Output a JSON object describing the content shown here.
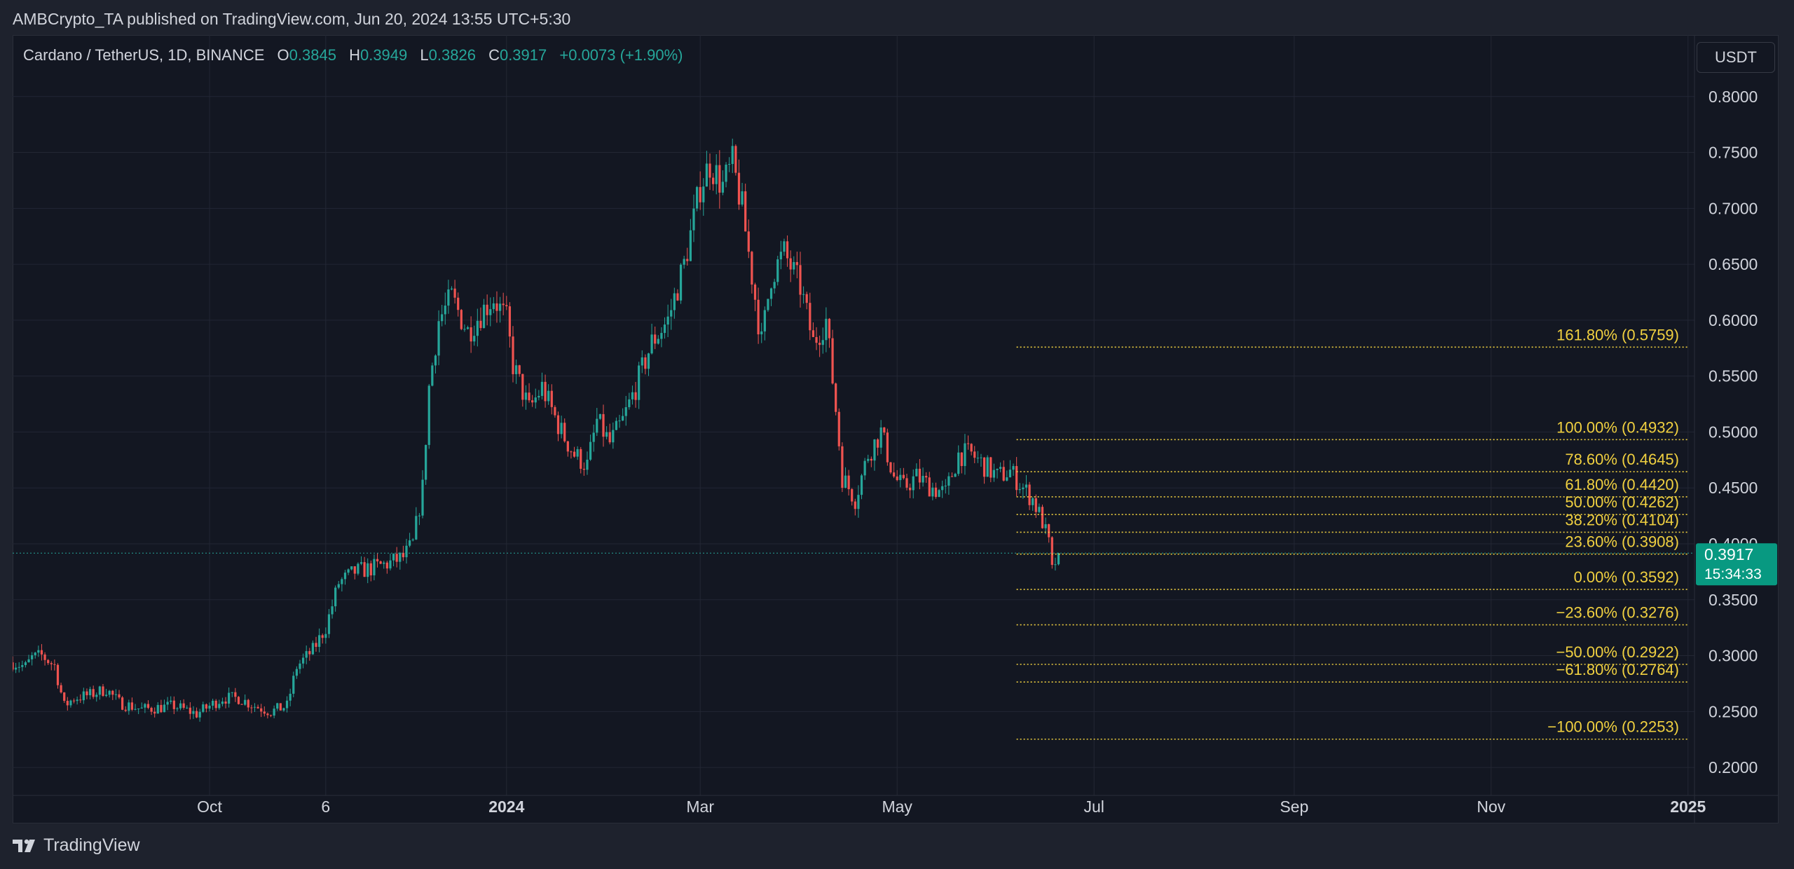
{
  "header": {
    "publisher": "AMBCrypto_TA published on TradingView.com, Jun 20, 2024 13:55 UTC+5:30"
  },
  "legend": {
    "symbol": "Cardano / TetherUS, 1D, BINANCE",
    "o_label": "O",
    "o": "0.3845",
    "h_label": "H",
    "h": "0.3949",
    "l_label": "L",
    "l": "0.3826",
    "c_label": "C",
    "c": "0.3917",
    "change": "+0.0073 (+1.90%)"
  },
  "currency": "USDT",
  "price_tag": {
    "price": "0.3917",
    "countdown": "15:34:33"
  },
  "brand": "TradingView",
  "colors": {
    "up": "#26a69a",
    "down": "#ef5350",
    "fib": "#f0d040",
    "grid": "#232734",
    "text": "#d1d4dc",
    "tag": "#089981"
  },
  "chart_data": {
    "type": "candlestick",
    "title": "Cardano / TetherUS, 1D, BINANCE",
    "ylim": [
      0.175,
      0.855
    ],
    "y_ticks": [
      "0.8000",
      "0.7500",
      "0.7000",
      "0.6500",
      "0.6000",
      "0.5500",
      "0.5000",
      "0.4500",
      "0.4000",
      "0.3500",
      "0.3000",
      "0.2500",
      "0.2000"
    ],
    "x_range": [
      "2023-08-01",
      "2025-01-03"
    ],
    "x_ticks": [
      {
        "date": "2023-10-01",
        "label": "Oct",
        "bold": false
      },
      {
        "date": "2023-11-06",
        "label": "6",
        "bold": false
      },
      {
        "date": "2024-01-01",
        "label": "2024",
        "bold": true
      },
      {
        "date": "2024-03-01",
        "label": "Mar",
        "bold": false
      },
      {
        "date": "2024-05-01",
        "label": "May",
        "bold": false
      },
      {
        "date": "2024-07-01",
        "label": "Jul",
        "bold": false
      },
      {
        "date": "2024-09-01",
        "label": "Sep",
        "bold": false
      },
      {
        "date": "2024-11-01",
        "label": "Nov",
        "bold": false
      },
      {
        "date": "2025-01-01",
        "label": "2025",
        "bold": true
      }
    ],
    "grid": true,
    "path_points": [
      [
        "2023-08-01",
        0.294
      ],
      [
        "2023-08-05",
        0.29
      ],
      [
        "2023-08-07",
        0.298
      ],
      [
        "2023-08-10",
        0.3
      ],
      [
        "2023-08-14",
        0.291
      ],
      [
        "2023-08-17",
        0.255
      ],
      [
        "2023-08-20",
        0.262
      ],
      [
        "2023-08-25",
        0.265
      ],
      [
        "2023-08-30",
        0.27
      ],
      [
        "2023-09-03",
        0.258
      ],
      [
        "2023-09-10",
        0.252
      ],
      [
        "2023-09-20",
        0.255
      ],
      [
        "2023-09-27",
        0.248
      ],
      [
        "2023-10-05",
        0.262
      ],
      [
        "2023-10-10",
        0.262
      ],
      [
        "2023-10-15",
        0.255
      ],
      [
        "2023-10-20",
        0.25
      ],
      [
        "2023-10-25",
        0.255
      ],
      [
        "2023-10-28",
        0.29
      ],
      [
        "2023-11-02",
        0.305
      ],
      [
        "2023-11-06",
        0.325
      ],
      [
        "2023-11-10",
        0.365
      ],
      [
        "2023-11-15",
        0.375
      ],
      [
        "2023-11-20",
        0.378
      ],
      [
        "2023-11-26",
        0.383
      ],
      [
        "2023-11-30",
        0.388
      ],
      [
        "2023-12-03",
        0.4
      ],
      [
        "2023-12-06",
        0.45
      ],
      [
        "2023-12-08",
        0.54
      ],
      [
        "2023-12-11",
        0.6
      ],
      [
        "2023-12-15",
        0.62
      ],
      [
        "2023-12-20",
        0.59
      ],
      [
        "2023-12-25",
        0.61
      ],
      [
        "2023-12-28",
        0.62
      ],
      [
        "2024-01-01",
        0.6
      ],
      [
        "2024-01-03",
        0.56
      ],
      [
        "2024-01-08",
        0.52
      ],
      [
        "2024-01-12",
        0.54
      ],
      [
        "2024-01-15",
        0.52
      ],
      [
        "2024-01-18",
        0.5
      ],
      [
        "2024-01-22",
        0.48
      ],
      [
        "2024-01-26",
        0.47
      ],
      [
        "2024-01-29",
        0.51
      ],
      [
        "2024-02-02",
        0.49
      ],
      [
        "2024-02-06",
        0.51
      ],
      [
        "2024-02-10",
        0.54
      ],
      [
        "2024-02-15",
        0.58
      ],
      [
        "2024-02-20",
        0.6
      ],
      [
        "2024-02-25",
        0.65
      ],
      [
        "2024-02-28",
        0.69
      ],
      [
        "2024-03-01",
        0.72
      ],
      [
        "2024-03-04",
        0.74
      ],
      [
        "2024-03-08",
        0.72
      ],
      [
        "2024-03-11",
        0.74
      ],
      [
        "2024-03-14",
        0.7
      ],
      [
        "2024-03-18",
        0.62
      ],
      [
        "2024-03-20",
        0.58
      ],
      [
        "2024-03-23",
        0.64
      ],
      [
        "2024-03-27",
        0.66
      ],
      [
        "2024-04-01",
        0.63
      ],
      [
        "2024-04-05",
        0.58
      ],
      [
        "2024-04-09",
        0.6
      ],
      [
        "2024-04-12",
        0.52
      ],
      [
        "2024-04-14",
        0.46
      ],
      [
        "2024-04-18",
        0.44
      ],
      [
        "2024-04-22",
        0.48
      ],
      [
        "2024-04-26",
        0.5
      ],
      [
        "2024-04-30",
        0.46
      ],
      [
        "2024-05-03",
        0.45
      ],
      [
        "2024-05-07",
        0.46
      ],
      [
        "2024-05-12",
        0.45
      ],
      [
        "2024-05-16",
        0.445
      ],
      [
        "2024-05-20",
        0.48
      ],
      [
        "2024-05-24",
        0.48
      ],
      [
        "2024-05-28",
        0.47
      ],
      [
        "2024-06-01",
        0.46
      ],
      [
        "2024-06-05",
        0.465
      ],
      [
        "2024-06-09",
        0.45
      ],
      [
        "2024-06-12",
        0.44
      ],
      [
        "2024-06-15",
        0.42
      ],
      [
        "2024-06-17",
        0.4
      ],
      [
        "2024-06-18",
        0.375
      ],
      [
        "2024-06-19",
        0.384
      ],
      [
        "2024-06-20",
        0.392
      ]
    ],
    "current_price": 0.3917,
    "fibonacci": {
      "start": "2024-06-07",
      "end": "2025-01-04",
      "levels": [
        {
          "label": "161.80% (0.5759)",
          "price": 0.5759
        },
        {
          "label": "100.00% (0.4932)",
          "price": 0.4932
        },
        {
          "label": "78.60% (0.4645)",
          "price": 0.4645
        },
        {
          "label": "61.80% (0.4420)",
          "price": 0.442
        },
        {
          "label": "50.00% (0.4262)",
          "price": 0.4262
        },
        {
          "label": "38.20% (0.4104)",
          "price": 0.4104
        },
        {
          "label": "23.60% (0.3908)",
          "price": 0.3908
        },
        {
          "label": "0.00% (0.3592)",
          "price": 0.3592
        },
        {
          "label": "−23.60% (0.3276)",
          "price": 0.3276
        },
        {
          "label": "−50.00% (0.2922)",
          "price": 0.2922
        },
        {
          "label": "−61.80% (0.2764)",
          "price": 0.2764
        },
        {
          "label": "−100.00% (0.2253)",
          "price": 0.2253
        }
      ]
    }
  }
}
